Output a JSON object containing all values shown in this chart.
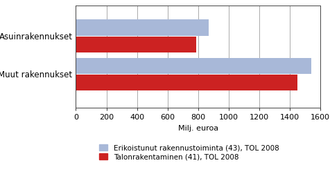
{
  "categories": [
    "Muut rakennukset",
    "Asuinrakennukset"
  ],
  "blue_values": [
    1540,
    870
  ],
  "red_values": [
    1450,
    790
  ],
  "blue_color": "#a8b8d8",
  "red_color": "#cc2222",
  "xlabel": "Milj. euroa",
  "xlim": [
    0,
    1600
  ],
  "xticks": [
    0,
    200,
    400,
    600,
    800,
    1000,
    1200,
    1400,
    1600
  ],
  "legend_blue": "Erikoistunut rakennustoiminta (43), TOL 2008",
  "legend_red": "Talonrakentaminen (41), TOL 2008",
  "bar_height": 0.42,
  "bar_gap": 0.02,
  "background_color": "#ffffff",
  "axis_fontsize": 8,
  "legend_fontsize": 7.5,
  "ylabel_fontsize": 8.5
}
